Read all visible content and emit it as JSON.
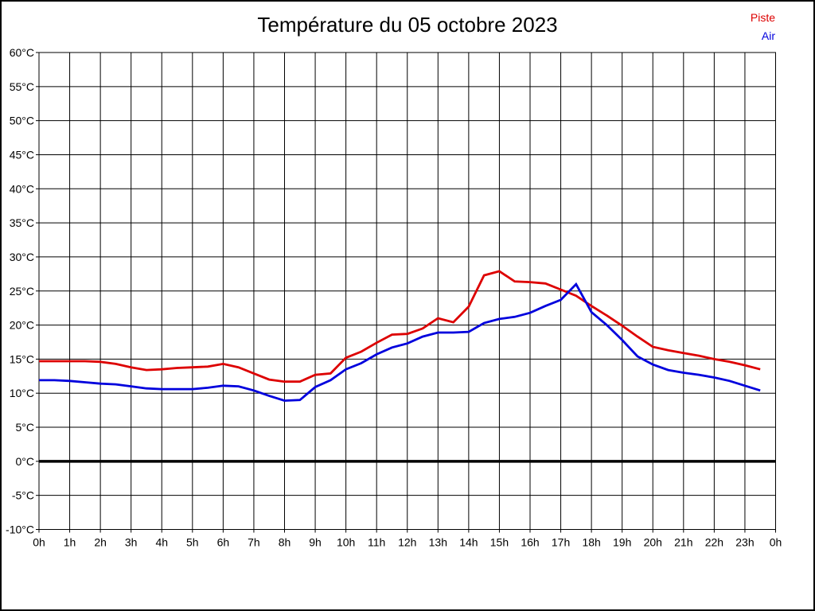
{
  "title": "Température du 05 octobre 2023",
  "legend": {
    "items": [
      {
        "label": "Piste",
        "color": "#dd0000"
      },
      {
        "label": "Air",
        "color": "#0000dd"
      }
    ]
  },
  "chart_data": {
    "type": "line",
    "title": "Température du 05 octobre 2023",
    "xlabel": "",
    "ylabel": "",
    "x_unit": "hour of day",
    "y_unit": "°C",
    "xlim": [
      0,
      24
    ],
    "ylim": [
      -10,
      60
    ],
    "grid": true,
    "zero_line_at": 0,
    "legend_position": "top-right",
    "x_tick_labels": [
      "0h",
      "1h",
      "2h",
      "3h",
      "4h",
      "5h",
      "6h",
      "7h",
      "8h",
      "9h",
      "10h",
      "11h",
      "12h",
      "13h",
      "14h",
      "15h",
      "16h",
      "17h",
      "18h",
      "19h",
      "20h",
      "21h",
      "22h",
      "23h",
      "0h"
    ],
    "y_ticks": [
      60,
      55,
      50,
      45,
      40,
      35,
      30,
      25,
      20,
      15,
      10,
      5,
      0,
      -5,
      -10
    ],
    "y_tick_labels": [
      "60°C",
      "55°C",
      "50°C",
      "45°C",
      "40°C",
      "35°C",
      "30°C",
      "25°C",
      "20°C",
      "15°C",
      "10°C",
      "5°C",
      "0°C",
      "-5°C",
      "-10°C"
    ],
    "x": [
      0,
      0.5,
      1,
      1.5,
      2,
      2.5,
      3,
      3.5,
      4,
      4.5,
      5,
      5.5,
      6,
      6.5,
      7,
      7.5,
      8,
      8.5,
      9,
      9.5,
      10,
      10.5,
      11,
      11.5,
      12,
      12.5,
      13,
      13.5,
      14,
      14.5,
      15,
      15.5,
      16,
      16.5,
      17,
      17.5,
      18,
      18.5,
      19,
      19.5,
      20,
      20.5,
      21,
      21.5,
      22,
      22.5,
      23,
      23.5
    ],
    "series": [
      {
        "name": "Piste",
        "color": "#dd0000",
        "values": [
          14.7,
          14.7,
          14.7,
          14.7,
          14.6,
          14.3,
          13.8,
          13.4,
          13.5,
          13.7,
          13.8,
          13.9,
          14.3,
          13.8,
          12.9,
          12.0,
          11.7,
          11.7,
          12.7,
          12.9,
          15.2,
          16.1,
          17.4,
          18.6,
          18.7,
          19.5,
          21.0,
          20.4,
          22.7,
          27.3,
          27.9,
          26.4,
          26.3,
          26.1,
          25.2,
          24.3,
          22.8,
          21.4,
          19.9,
          18.3,
          16.8,
          16.3,
          15.9,
          15.5,
          15.0,
          14.6,
          14.1,
          13.5
        ]
      },
      {
        "name": "Air",
        "color": "#0000dd",
        "values": [
          11.9,
          11.9,
          11.8,
          11.6,
          11.4,
          11.3,
          11.0,
          10.7,
          10.6,
          10.6,
          10.6,
          10.8,
          11.1,
          11.0,
          10.4,
          9.6,
          8.9,
          9.0,
          10.9,
          11.9,
          13.5,
          14.4,
          15.7,
          16.7,
          17.3,
          18.3,
          18.9,
          18.9,
          19.0,
          20.3,
          20.9,
          21.2,
          21.8,
          22.8,
          23.7,
          26.0,
          21.9,
          20.0,
          17.8,
          15.4,
          14.2,
          13.4,
          13.0,
          12.7,
          12.3,
          11.8,
          11.1,
          10.4
        ]
      }
    ]
  }
}
